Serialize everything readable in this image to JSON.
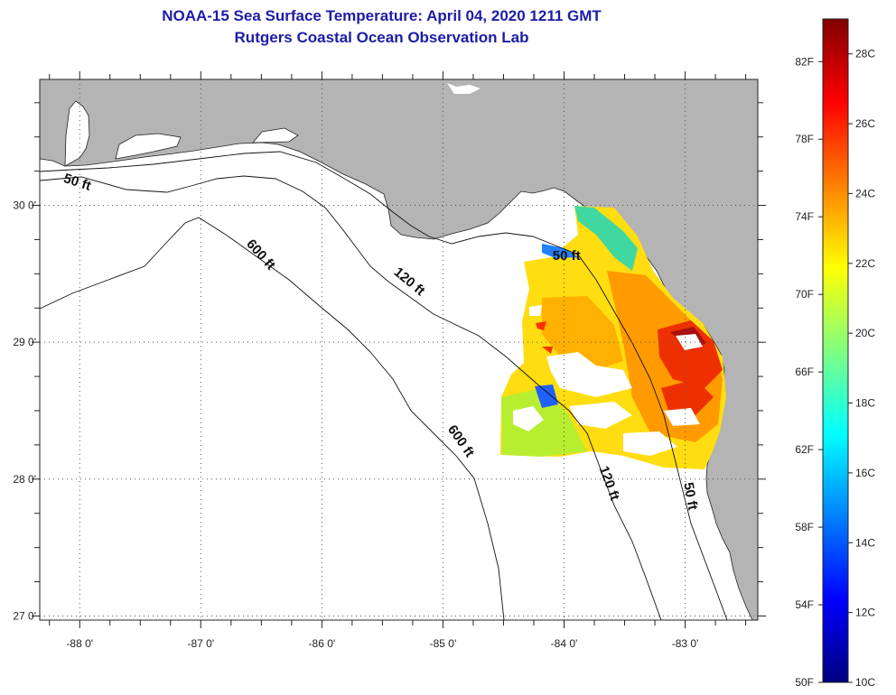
{
  "title": {
    "line1": "NOAA-15 Sea Surface Temperature:  April 04, 2020 1211 GMT",
    "line2": "Rutgers Coastal Ocean Observation Lab"
  },
  "map": {
    "lon_range": [
      -88.33,
      -82.4
    ],
    "lat_range": [
      26.97,
      30.92
    ],
    "lon_ticks": [
      {
        "value": -88,
        "label": "-88 0'"
      },
      {
        "value": -87,
        "label": "-87 0'"
      },
      {
        "value": -86,
        "label": "-86 0'"
      },
      {
        "value": -85,
        "label": "-85 0'"
      },
      {
        "value": -84,
        "label": "-84 0'"
      },
      {
        "value": -83,
        "label": "-83 0'"
      }
    ],
    "lat_ticks": [
      {
        "value": 30,
        "label": "30 0'"
      },
      {
        "value": 29,
        "label": "29 0'"
      },
      {
        "value": 28,
        "label": "28 0'"
      },
      {
        "value": 27,
        "label": "27 0'"
      }
    ],
    "grid": "dotted",
    "land_color": "#b4b4b4",
    "water_color": "#ffffff",
    "contour_labels": [
      {
        "text": "50 ft",
        "lon": -88.03,
        "lat": 30.14,
        "rotate": 18
      },
      {
        "text": "600 ft",
        "lon": -86.53,
        "lat": 29.62,
        "rotate": 48
      },
      {
        "text": "120 ft",
        "lon": -85.3,
        "lat": 29.42,
        "rotate": 40
      },
      {
        "text": "50 ft",
        "lon": -83.98,
        "lat": 29.6,
        "rotate": 0
      },
      {
        "text": "600 ft",
        "lon": -84.88,
        "lat": 28.26,
        "rotate": 55
      },
      {
        "text": "120 ft",
        "lon": -83.66,
        "lat": 27.96,
        "rotate": 70
      },
      {
        "text": "50 ft",
        "lon": -82.99,
        "lat": 27.87,
        "rotate": 80
      }
    ]
  },
  "colorbar": {
    "colors": [
      "#000080",
      "#0000ff",
      "#0080ff",
      "#00ffff",
      "#80ff80",
      "#ffff00",
      "#ff8000",
      "#ff0000",
      "#800000"
    ],
    "range_f": [
      50,
      84.2
    ],
    "fahrenheit_ticks": [
      {
        "value": 82,
        "label": "82F"
      },
      {
        "value": 78,
        "label": "78F"
      },
      {
        "value": 74,
        "label": "74F"
      },
      {
        "value": 70,
        "label": "70F"
      },
      {
        "value": 66,
        "label": "66F"
      },
      {
        "value": 62,
        "label": "62F"
      },
      {
        "value": 58,
        "label": "58F"
      },
      {
        "value": 54,
        "label": "54F"
      },
      {
        "value": 50,
        "label": "50F"
      }
    ],
    "celsius_ticks": [
      {
        "value": 28,
        "label": "28C"
      },
      {
        "value": 26,
        "label": "26C"
      },
      {
        "value": 24,
        "label": "24C"
      },
      {
        "value": 22,
        "label": "22C"
      },
      {
        "value": 20,
        "label": "20C"
      },
      {
        "value": 18,
        "label": "18C"
      },
      {
        "value": 16,
        "label": "16C"
      },
      {
        "value": 14,
        "label": "14C"
      },
      {
        "value": 12,
        "label": "12C"
      },
      {
        "value": 10,
        "label": "10C"
      }
    ]
  }
}
